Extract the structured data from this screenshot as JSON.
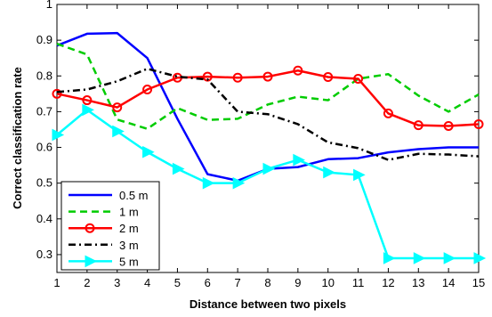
{
  "chart_data": {
    "type": "line",
    "title": "",
    "xlabel": "Distance between two pixels",
    "ylabel": "Correct classification rate",
    "xlim": [
      1,
      15
    ],
    "ylim": [
      0.25,
      1.0
    ],
    "xticks": [
      1,
      2,
      3,
      4,
      5,
      6,
      7,
      8,
      9,
      10,
      11,
      12,
      13,
      14,
      15
    ],
    "xtick_labels": [
      "1",
      "2",
      "3",
      "4",
      "5",
      "6",
      "7",
      "8",
      "9",
      "10",
      "11",
      "12",
      "13",
      "14",
      "15"
    ],
    "yticks": [
      0.3,
      0.4,
      0.5,
      0.6,
      0.7,
      0.8,
      0.9,
      1.0
    ],
    "ytick_labels": [
      "0.3",
      "0.4",
      "0.5",
      "0.6",
      "0.7",
      "0.8",
      "0.9",
      "1"
    ],
    "grid": false,
    "legend_position": "bottom-left",
    "x": [
      1,
      2,
      3,
      4,
      5,
      6,
      7,
      8,
      9,
      10,
      11,
      12,
      13,
      14,
      15
    ],
    "series": [
      {
        "name": "0.5 m",
        "color": "#0000ff",
        "dash": "solid",
        "marker": "none",
        "values": [
          0.885,
          0.918,
          0.92,
          0.85,
          0.68,
          0.525,
          0.507,
          0.54,
          0.545,
          0.567,
          0.57,
          0.586,
          0.595,
          0.6,
          0.6
        ]
      },
      {
        "name": "1 m",
        "color": "#00cc00",
        "dash": "dashed",
        "marker": "none",
        "values": [
          0.89,
          0.86,
          0.678,
          0.652,
          0.71,
          0.677,
          0.68,
          0.72,
          0.742,
          0.732,
          0.792,
          0.805,
          0.745,
          0.7,
          0.748
        ]
      },
      {
        "name": "2 m",
        "color": "#ff0000",
        "dash": "solid",
        "marker": "circle",
        "values": [
          0.75,
          0.732,
          0.712,
          0.762,
          0.795,
          0.798,
          0.795,
          0.798,
          0.815,
          0.797,
          0.792,
          0.695,
          0.662,
          0.66,
          0.665
        ]
      },
      {
        "name": "3 m",
        "color": "#000000",
        "dash": "dashdot",
        "marker": "none",
        "values": [
          0.755,
          0.762,
          0.785,
          0.82,
          0.798,
          0.79,
          0.7,
          0.693,
          0.665,
          0.614,
          0.598,
          0.565,
          0.582,
          0.58,
          0.575
        ]
      },
      {
        "name": "5 m",
        "color": "#00ffff",
        "dash": "solid",
        "marker": "triangle-right",
        "values": [
          0.635,
          0.705,
          0.645,
          0.587,
          0.54,
          0.5,
          0.5,
          0.54,
          0.565,
          0.53,
          0.523,
          0.29,
          0.29,
          0.29,
          0.29
        ]
      }
    ]
  }
}
